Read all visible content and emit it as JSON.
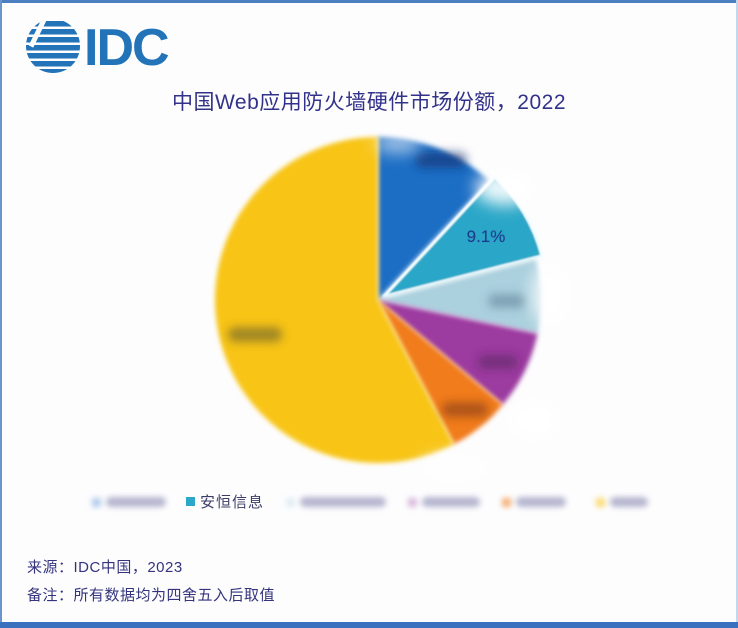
{
  "page": {
    "background": "#fdfdfe",
    "frame_border_color": "#4c7fc2",
    "bottom_bar_color": "#3a70bd"
  },
  "header": {
    "logo_text": "IDC",
    "logo_color": "#2273b8"
  },
  "chart_data": {
    "type": "pie",
    "title": "中国Web应用防火墙硬件市场份额，2022",
    "title_color": "#32328a",
    "direction": "clockwise",
    "start_angle": "top",
    "legend_position": "bottom",
    "visible_data_label": "9.1%",
    "slices": [
      {
        "legend_label": "",
        "label_redacted": true,
        "percent": 11.9,
        "percent_estimated": true,
        "color": "#1f6ec5",
        "highlighted": false
      },
      {
        "legend_label": "安恒信息",
        "label_redacted": false,
        "percent": 9.1,
        "percent_estimated": false,
        "color": "#2ba7c8",
        "highlighted": true,
        "data_label": "9.1%"
      },
      {
        "legend_label": "",
        "label_redacted": true,
        "percent": 7.3,
        "percent_estimated": true,
        "color": "#abd0de",
        "highlighted": false
      },
      {
        "legend_label": "",
        "label_redacted": true,
        "percent": 7.8,
        "percent_estimated": true,
        "color": "#9c3ba0",
        "highlighted": false
      },
      {
        "legend_label": "",
        "label_redacted": true,
        "percent": 6.2,
        "percent_estimated": true,
        "color": "#f17b1d",
        "highlighted": false
      },
      {
        "legend_label": "",
        "label_redacted": true,
        "percent": 57.7,
        "percent_estimated": true,
        "color": "#f8c412",
        "highlighted": false
      }
    ]
  },
  "footer": {
    "source_line": "来源：IDC中国，2023",
    "note_line": "备注：所有数据均为四舍五入后取值"
  }
}
